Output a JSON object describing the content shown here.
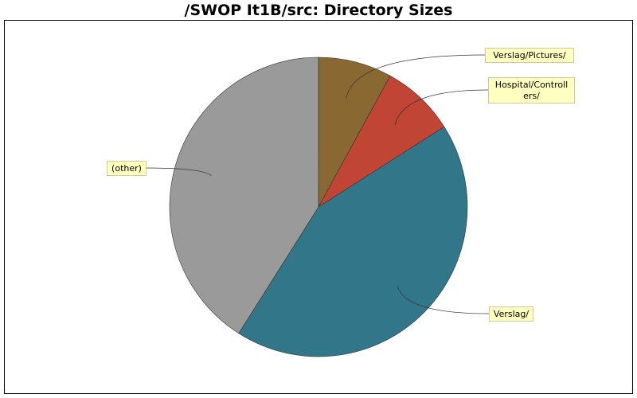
{
  "colors": {
    "background": "#ffffff",
    "plot_border": "#000000",
    "label_box_fill": "#ffffc0",
    "label_box_stroke": "#cccc99"
  },
  "chart_data": {
    "type": "pie",
    "title": "/SWOP It1B/src: Directory Sizes",
    "start_angle_deg": 90,
    "direction": "clockwise",
    "slices": [
      {
        "label": "Verslag/Pictures/",
        "value": 8,
        "color": "#8a6832"
      },
      {
        "label": "Hospital/Controllers/",
        "value": 8,
        "color": "#c04535"
      },
      {
        "label": "Verslag/",
        "value": 43,
        "color": "#32768a"
      },
      {
        "label": "(other)",
        "value": 41,
        "color": "#9a9a9a"
      }
    ]
  }
}
